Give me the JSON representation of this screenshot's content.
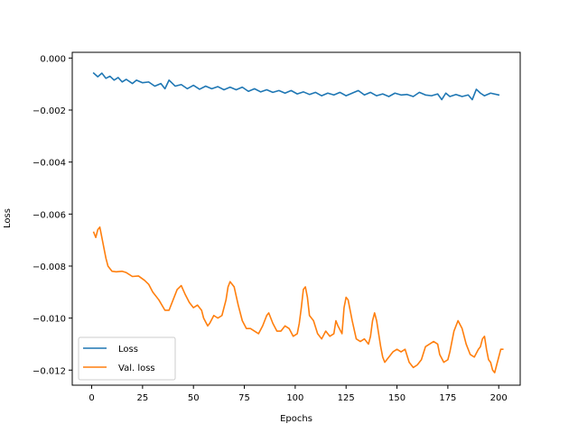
{
  "chart_data": {
    "type": "line",
    "title": "",
    "xlabel": "Epochs",
    "ylabel": "Loss",
    "xlim": [
      -9.55,
      210.55
    ],
    "ylim": [
      -0.01258,
      0.00022
    ],
    "xticks": [
      0,
      25,
      50,
      75,
      100,
      125,
      150,
      175,
      200
    ],
    "xtick_labels": [
      "0",
      "25",
      "50",
      "75",
      "100",
      "125",
      "150",
      "175",
      "200"
    ],
    "yticks": [
      0.0,
      -0.002,
      -0.004,
      -0.006,
      -0.008,
      -0.01,
      -0.012
    ],
    "ytick_labels": [
      "0.000",
      "−0.002",
      "−0.004",
      "−0.006",
      "−0.008",
      "−0.010",
      "−0.012"
    ],
    "grid": false,
    "legend_position": "lower-left",
    "series": [
      {
        "name": "Loss",
        "color": "#1f77b4",
        "points": [
          [
            1,
            -0.00058
          ],
          [
            3,
            -0.00072
          ],
          [
            5,
            -0.00058
          ],
          [
            7,
            -0.00078
          ],
          [
            9,
            -0.0007
          ],
          [
            11,
            -0.00085
          ],
          [
            13,
            -0.00075
          ],
          [
            15,
            -0.00092
          ],
          [
            17,
            -0.00082
          ],
          [
            20,
            -0.00098
          ],
          [
            22,
            -0.00085
          ],
          [
            25,
            -0.00095
          ],
          [
            28,
            -0.00092
          ],
          [
            31,
            -0.00108
          ],
          [
            34,
            -0.00098
          ],
          [
            36,
            -0.00118
          ],
          [
            38,
            -0.00085
          ],
          [
            41,
            -0.00108
          ],
          [
            44,
            -0.00102
          ],
          [
            47,
            -0.00118
          ],
          [
            50,
            -0.00105
          ],
          [
            53,
            -0.0012
          ],
          [
            56,
            -0.00108
          ],
          [
            59,
            -0.00118
          ],
          [
            62,
            -0.0011
          ],
          [
            65,
            -0.00122
          ],
          [
            68,
            -0.00112
          ],
          [
            71,
            -0.00122
          ],
          [
            74,
            -0.00112
          ],
          [
            77,
            -0.00128
          ],
          [
            80,
            -0.00118
          ],
          [
            83,
            -0.0013
          ],
          [
            86,
            -0.00122
          ],
          [
            89,
            -0.00132
          ],
          [
            92,
            -0.00125
          ],
          [
            95,
            -0.00135
          ],
          [
            98,
            -0.00125
          ],
          [
            101,
            -0.00138
          ],
          [
            104,
            -0.0013
          ],
          [
            107,
            -0.0014
          ],
          [
            110,
            -0.00132
          ],
          [
            113,
            -0.00145
          ],
          [
            116,
            -0.00135
          ],
          [
            119,
            -0.00142
          ],
          [
            122,
            -0.00132
          ],
          [
            125,
            -0.00145
          ],
          [
            128,
            -0.00135
          ],
          [
            131,
            -0.00125
          ],
          [
            134,
            -0.00142
          ],
          [
            137,
            -0.00132
          ],
          [
            140,
            -0.00145
          ],
          [
            143,
            -0.00138
          ],
          [
            146,
            -0.00148
          ],
          [
            149,
            -0.00135
          ],
          [
            152,
            -0.00142
          ],
          [
            155,
            -0.0014
          ],
          [
            158,
            -0.00148
          ],
          [
            161,
            -0.00132
          ],
          [
            164,
            -0.00142
          ],
          [
            167,
            -0.00145
          ],
          [
            170,
            -0.00138
          ],
          [
            172,
            -0.0016
          ],
          [
            174,
            -0.00135
          ],
          [
            176,
            -0.00148
          ],
          [
            179,
            -0.0014
          ],
          [
            182,
            -0.00148
          ],
          [
            185,
            -0.00142
          ],
          [
            187,
            -0.0016
          ],
          [
            189,
            -0.0012
          ],
          [
            191,
            -0.00135
          ],
          [
            193,
            -0.00145
          ],
          [
            196,
            -0.00135
          ],
          [
            200,
            -0.00142
          ]
        ]
      },
      {
        "name": "Val. loss",
        "color": "#ff7f0e",
        "points": [
          [
            1,
            -0.0067
          ],
          [
            2,
            -0.0069
          ],
          [
            3,
            -0.0066
          ],
          [
            4,
            -0.0065
          ],
          [
            5,
            -0.0069
          ],
          [
            6,
            -0.0073
          ],
          [
            7,
            -0.0077
          ],
          [
            8,
            -0.008
          ],
          [
            9,
            -0.0081
          ],
          [
            10,
            -0.0082
          ],
          [
            12,
            -0.00822
          ],
          [
            15,
            -0.0082
          ],
          [
            17,
            -0.00825
          ],
          [
            20,
            -0.0084
          ],
          [
            23,
            -0.00838
          ],
          [
            26,
            -0.00855
          ],
          [
            28,
            -0.0087
          ],
          [
            30,
            -0.009
          ],
          [
            33,
            -0.0093
          ],
          [
            36,
            -0.0097
          ],
          [
            38,
            -0.0097
          ],
          [
            40,
            -0.0093
          ],
          [
            42,
            -0.0089
          ],
          [
            44,
            -0.00875
          ],
          [
            46,
            -0.0091
          ],
          [
            48,
            -0.0094
          ],
          [
            50,
            -0.0096
          ],
          [
            52,
            -0.0095
          ],
          [
            54,
            -0.0097
          ],
          [
            55,
            -0.01
          ],
          [
            57,
            -0.0103
          ],
          [
            58,
            -0.0102
          ],
          [
            60,
            -0.0099
          ],
          [
            62,
            -0.01
          ],
          [
            64,
            -0.0099
          ],
          [
            66,
            -0.0093
          ],
          [
            67,
            -0.0088
          ],
          [
            68,
            -0.0086
          ],
          [
            70,
            -0.0088
          ],
          [
            72,
            -0.0095
          ],
          [
            74,
            -0.0101
          ],
          [
            76,
            -0.0104
          ],
          [
            78,
            -0.0104
          ],
          [
            80,
            -0.0105
          ],
          [
            82,
            -0.0106
          ],
          [
            84,
            -0.0103
          ],
          [
            86,
            -0.0099
          ],
          [
            87,
            -0.0098
          ],
          [
            89,
            -0.0102
          ],
          [
            91,
            -0.0105
          ],
          [
            93,
            -0.0105
          ],
          [
            95,
            -0.0103
          ],
          [
            97,
            -0.0104
          ],
          [
            99,
            -0.0107
          ],
          [
            101,
            -0.0106
          ],
          [
            102,
            -0.0102
          ],
          [
            103,
            -0.0096
          ],
          [
            104,
            -0.0089
          ],
          [
            105,
            -0.0088
          ],
          [
            106,
            -0.0092
          ],
          [
            107,
            -0.0099
          ],
          [
            109,
            -0.0101
          ],
          [
            111,
            -0.0106
          ],
          [
            113,
            -0.0108
          ],
          [
            115,
            -0.0105
          ],
          [
            117,
            -0.0107
          ],
          [
            119,
            -0.0106
          ],
          [
            120,
            -0.0101
          ],
          [
            121,
            -0.0103
          ],
          [
            123,
            -0.0106
          ],
          [
            124,
            -0.0096
          ],
          [
            125,
            -0.0092
          ],
          [
            126,
            -0.0093
          ],
          [
            128,
            -0.0101
          ],
          [
            130,
            -0.0108
          ],
          [
            132,
            -0.0109
          ],
          [
            134,
            -0.0108
          ],
          [
            136,
            -0.011
          ],
          [
            137,
            -0.0107
          ],
          [
            138,
            -0.0101
          ],
          [
            139,
            -0.0098
          ],
          [
            140,
            -0.0101
          ],
          [
            142,
            -0.0111
          ],
          [
            143,
            -0.0115
          ],
          [
            144,
            -0.0117
          ],
          [
            146,
            -0.0115
          ],
          [
            148,
            -0.0113
          ],
          [
            150,
            -0.0112
          ],
          [
            152,
            -0.0113
          ],
          [
            154,
            -0.0112
          ],
          [
            156,
            -0.0117
          ],
          [
            158,
            -0.0119
          ],
          [
            160,
            -0.0118
          ],
          [
            162,
            -0.0116
          ],
          [
            164,
            -0.0111
          ],
          [
            166,
            -0.011
          ],
          [
            168,
            -0.0109
          ],
          [
            170,
            -0.011
          ],
          [
            171,
            -0.0114
          ],
          [
            173,
            -0.0117
          ],
          [
            175,
            -0.0116
          ],
          [
            176,
            -0.0113
          ],
          [
            177,
            -0.0109
          ],
          [
            178,
            -0.0105
          ],
          [
            180,
            -0.0101
          ],
          [
            182,
            -0.0104
          ],
          [
            184,
            -0.011
          ],
          [
            186,
            -0.0114
          ],
          [
            188,
            -0.0115
          ],
          [
            190,
            -0.0112
          ],
          [
            191,
            -0.0111
          ],
          [
            192,
            -0.0108
          ],
          [
            193,
            -0.0107
          ],
          [
            194,
            -0.0112
          ],
          [
            195,
            -0.0116
          ],
          [
            196,
            -0.0117
          ],
          [
            197,
            -0.012
          ],
          [
            198,
            -0.0121
          ],
          [
            199,
            -0.0118
          ],
          [
            200,
            -0.0115
          ],
          [
            201,
            -0.0112
          ],
          [
            202,
            -0.0112
          ]
        ]
      }
    ]
  }
}
